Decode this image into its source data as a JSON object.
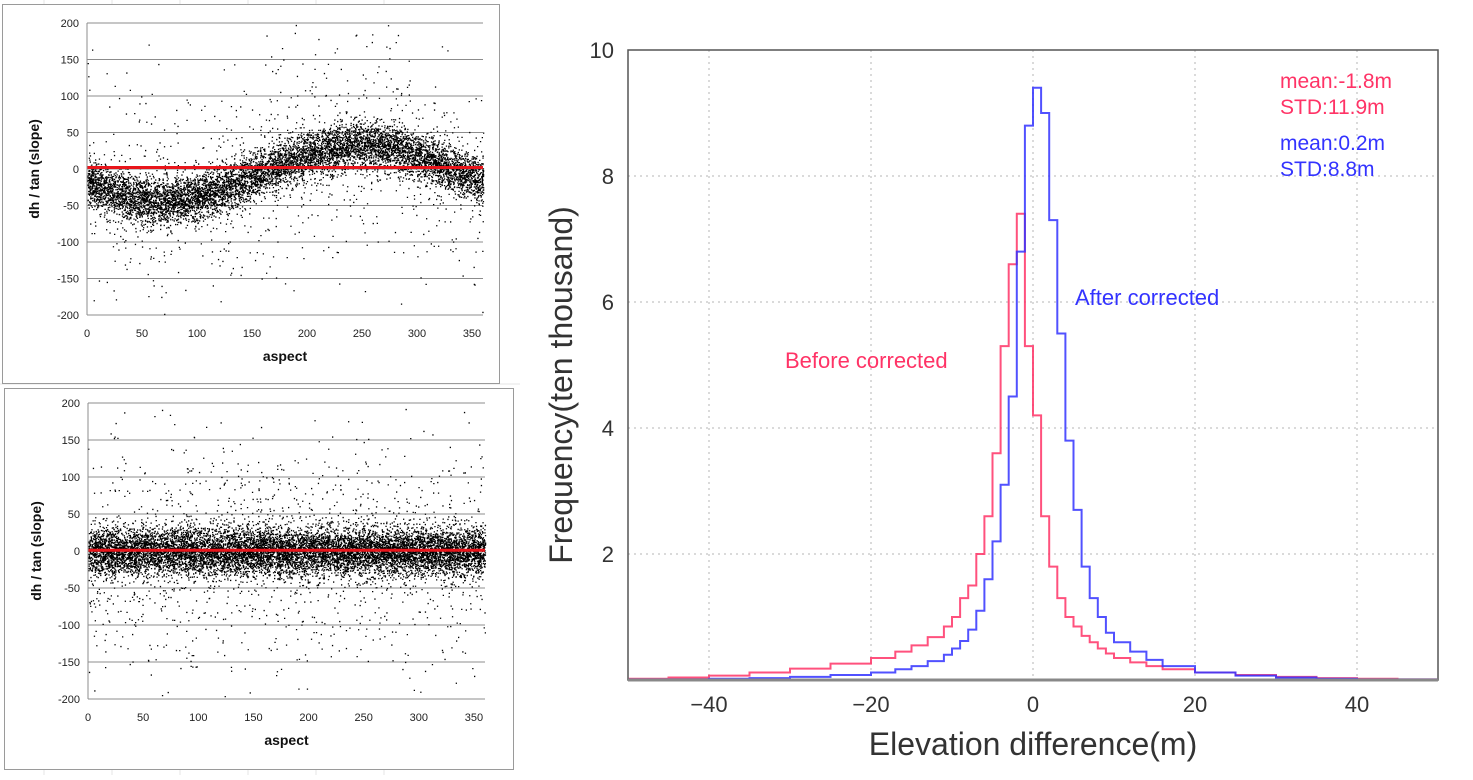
{
  "chart_data": [
    {
      "id": "scatter-before",
      "type": "scatter",
      "title": "",
      "xlabel": "aspect",
      "ylabel": "dh / tan (slope)",
      "xlim": [
        0,
        360
      ],
      "ylim": [
        -200,
        200
      ],
      "xticks": [
        "0",
        "50",
        "100",
        "150",
        "200",
        "250",
        "300",
        "350"
      ],
      "yticks": [
        "200",
        "150",
        "100",
        "50",
        "0",
        "-50",
        "-100",
        "-150",
        "-200"
      ],
      "grid": "horizontal",
      "point_color": "#000000",
      "trend_color": "#e8151b",
      "trend_line": {
        "x": [
          0,
          360
        ],
        "y": [
          2,
          2
        ]
      },
      "distribution": {
        "model": "sinusoid",
        "amplitude": 38,
        "phase_deg": 250,
        "offset": -5,
        "core_spread": 16,
        "n_points": 9000,
        "outlier_fraction": 0.1
      }
    },
    {
      "id": "scatter-after",
      "type": "scatter",
      "title": "",
      "xlabel": "aspect",
      "ylabel": "dh / tan (slope)",
      "xlim": [
        0,
        360
      ],
      "ylim": [
        -200,
        200
      ],
      "xticks": [
        "0",
        "50",
        "100",
        "150",
        "200",
        "250",
        "300",
        "350"
      ],
      "yticks": [
        "200",
        "150",
        "100",
        "50",
        "0",
        "-50",
        "-100",
        "-150",
        "-200"
      ],
      "grid": "horizontal",
      "point_color": "#000000",
      "trend_color": "#e8151b",
      "trend_line": {
        "x": [
          0,
          360
        ],
        "y": [
          1,
          1
        ]
      },
      "distribution": {
        "model": "flat",
        "amplitude": 0,
        "phase_deg": 0,
        "offset": 0,
        "core_spread": 16,
        "n_points": 12000,
        "outlier_fraction": 0.12
      }
    },
    {
      "id": "histogram",
      "type": "line",
      "subtype": "step-histogram",
      "title": "",
      "xlabel": "Elevation difference(m)",
      "ylabel": "Frequency(ten thousand)",
      "xlim": [
        -50,
        50
      ],
      "ylim": [
        0,
        10
      ],
      "xticks": [
        "−40",
        "−20",
        "0",
        "20",
        "40"
      ],
      "xtick_values": [
        -40,
        -20,
        0,
        20,
        40
      ],
      "yticks": [
        "2",
        "4",
        "6",
        "8",
        "10"
      ],
      "ytick_values": [
        2,
        4,
        6,
        8,
        10
      ],
      "grid": "dotted",
      "series": [
        {
          "name": "Before corrected",
          "color": "#ff3366",
          "x": [
            -50,
            -45,
            -40,
            -35,
            -30,
            -25,
            -20,
            -17,
            -15,
            -13,
            -11,
            -10,
            -9,
            -8,
            -7,
            -6,
            -5,
            -4,
            -3,
            -2,
            -1,
            0,
            1,
            2,
            3,
            4,
            5,
            6,
            7,
            8,
            9,
            10,
            12,
            14,
            16,
            20,
            25,
            30,
            35,
            40,
            45,
            50
          ],
          "values": [
            0.02,
            0.04,
            0.07,
            0.12,
            0.18,
            0.26,
            0.35,
            0.45,
            0.55,
            0.68,
            0.85,
            1.0,
            1.3,
            1.5,
            2.0,
            2.6,
            3.6,
            5.3,
            6.6,
            7.4,
            5.3,
            4.2,
            2.6,
            1.8,
            1.3,
            1.0,
            0.85,
            0.7,
            0.6,
            0.5,
            0.42,
            0.35,
            0.28,
            0.22,
            0.17,
            0.12,
            0.08,
            0.05,
            0.03,
            0.02,
            0.01,
            0.01
          ],
          "mean": "mean:-1.8m",
          "std": "STD:11.9m"
        },
        {
          "name": "After corrected",
          "color": "#3333ff",
          "x": [
            -50,
            -45,
            -40,
            -35,
            -30,
            -25,
            -20,
            -17,
            -15,
            -13,
            -11,
            -10,
            -9,
            -8,
            -7,
            -6,
            -5,
            -4,
            -3,
            -2,
            -1,
            0,
            1,
            2,
            3,
            4,
            5,
            6,
            7,
            8,
            9,
            10,
            12,
            14,
            16,
            20,
            25,
            30,
            35,
            40,
            45,
            50
          ],
          "values": [
            0.01,
            0.01,
            0.02,
            0.03,
            0.05,
            0.08,
            0.12,
            0.17,
            0.22,
            0.3,
            0.4,
            0.5,
            0.62,
            0.8,
            1.1,
            1.6,
            2.2,
            3.1,
            4.5,
            6.8,
            8.8,
            9.4,
            9.0,
            7.3,
            5.5,
            3.8,
            2.7,
            1.8,
            1.3,
            1.0,
            0.75,
            0.6,
            0.45,
            0.32,
            0.22,
            0.12,
            0.07,
            0.04,
            0.02,
            0.01,
            0.01,
            0.01
          ],
          "mean": "mean:0.2m",
          "std": "STD:8.8m"
        }
      ],
      "annotations": [
        {
          "text": "mean:-1.8m",
          "color": "#ff3366",
          "position": "top-right"
        },
        {
          "text": "STD:11.9m",
          "color": "#ff3366",
          "position": "top-right"
        },
        {
          "text": "mean:0.2m",
          "color": "#3333ff",
          "position": "top-right"
        },
        {
          "text": "STD:8.8m",
          "color": "#3333ff",
          "position": "top-right"
        },
        {
          "text": "Before corrected",
          "color": "#ff3366",
          "position": "left-of-peak"
        },
        {
          "text": "After corrected",
          "color": "#3333ff",
          "position": "right-of-peak"
        }
      ]
    }
  ]
}
